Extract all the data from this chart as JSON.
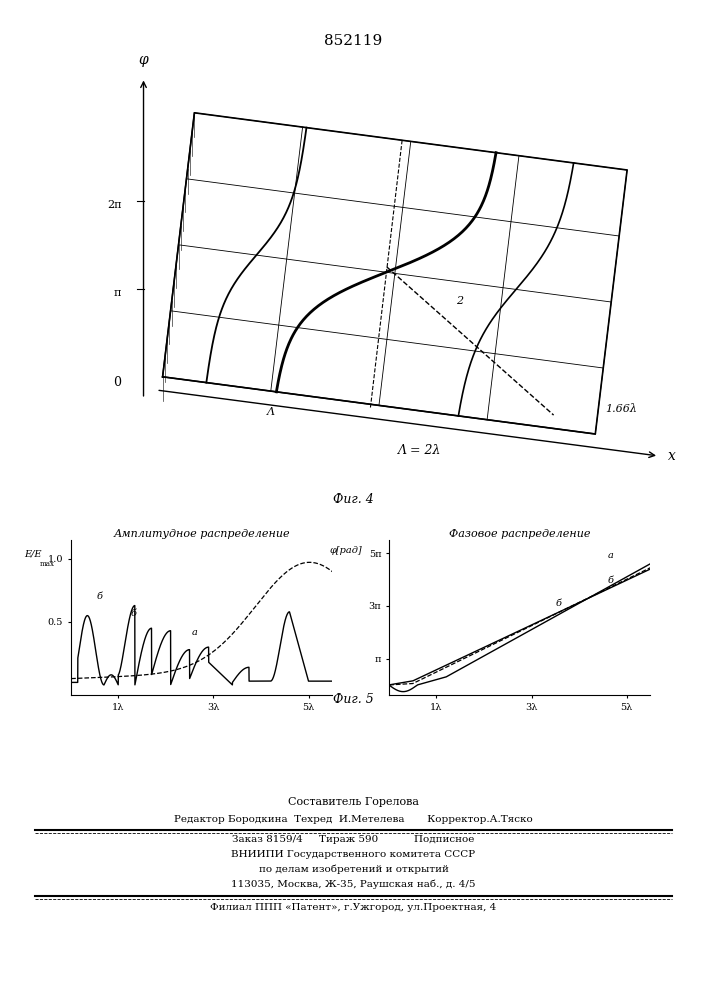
{
  "patent_number": "852119",
  "fig4_caption": "Фиг. 4",
  "fig5_caption": "Фиг. 5",
  "amp_title": "Амплитудное распределение",
  "phase_title": "Фазовое распределение",
  "amp_y_label": "E/E",
  "amp_y_sub": "max",
  "amp_xticks": [
    "1λ",
    "3λ",
    "5λ"
  ],
  "phase_ylabel": "φ[рад]",
  "phase_ytick1": "5π",
  "phase_ytick2": "3π",
  "phase_ytick3": "π",
  "phase_xticks": [
    "1λ",
    "3λ",
    "5λ"
  ],
  "fig4_y_label": "φ",
  "fig4_y_tick1": "2π",
  "fig4_y_tick2": "π",
  "fig4_x_label": "x",
  "fig4_lambda_label": "Λ = 2λ",
  "fig4_right_label": "1.66λ",
  "fig4_curve_label": "2",
  "fig4_origin_label": "0",
  "fig4_axis_label": "Λ",
  "footer_line1": "Составитель Горелова",
  "footer_line2": "Редактор Бородкина  Техред  И.Метелева       Корректор.А.Тяско",
  "footer_line3": "Заказ 8159/4     Тираж 590           Подписное",
  "footer_line4": "ВНИИПИ Государственного комитета СССР",
  "footer_line5": "по делам изобретений и открытий",
  "footer_line6": "113035, Москва, Ж-35, Раушская наб., д. 4/5",
  "footer_line7": "Филиал ППП «Патент», г.Ужгород, ул.Проектная, 4"
}
